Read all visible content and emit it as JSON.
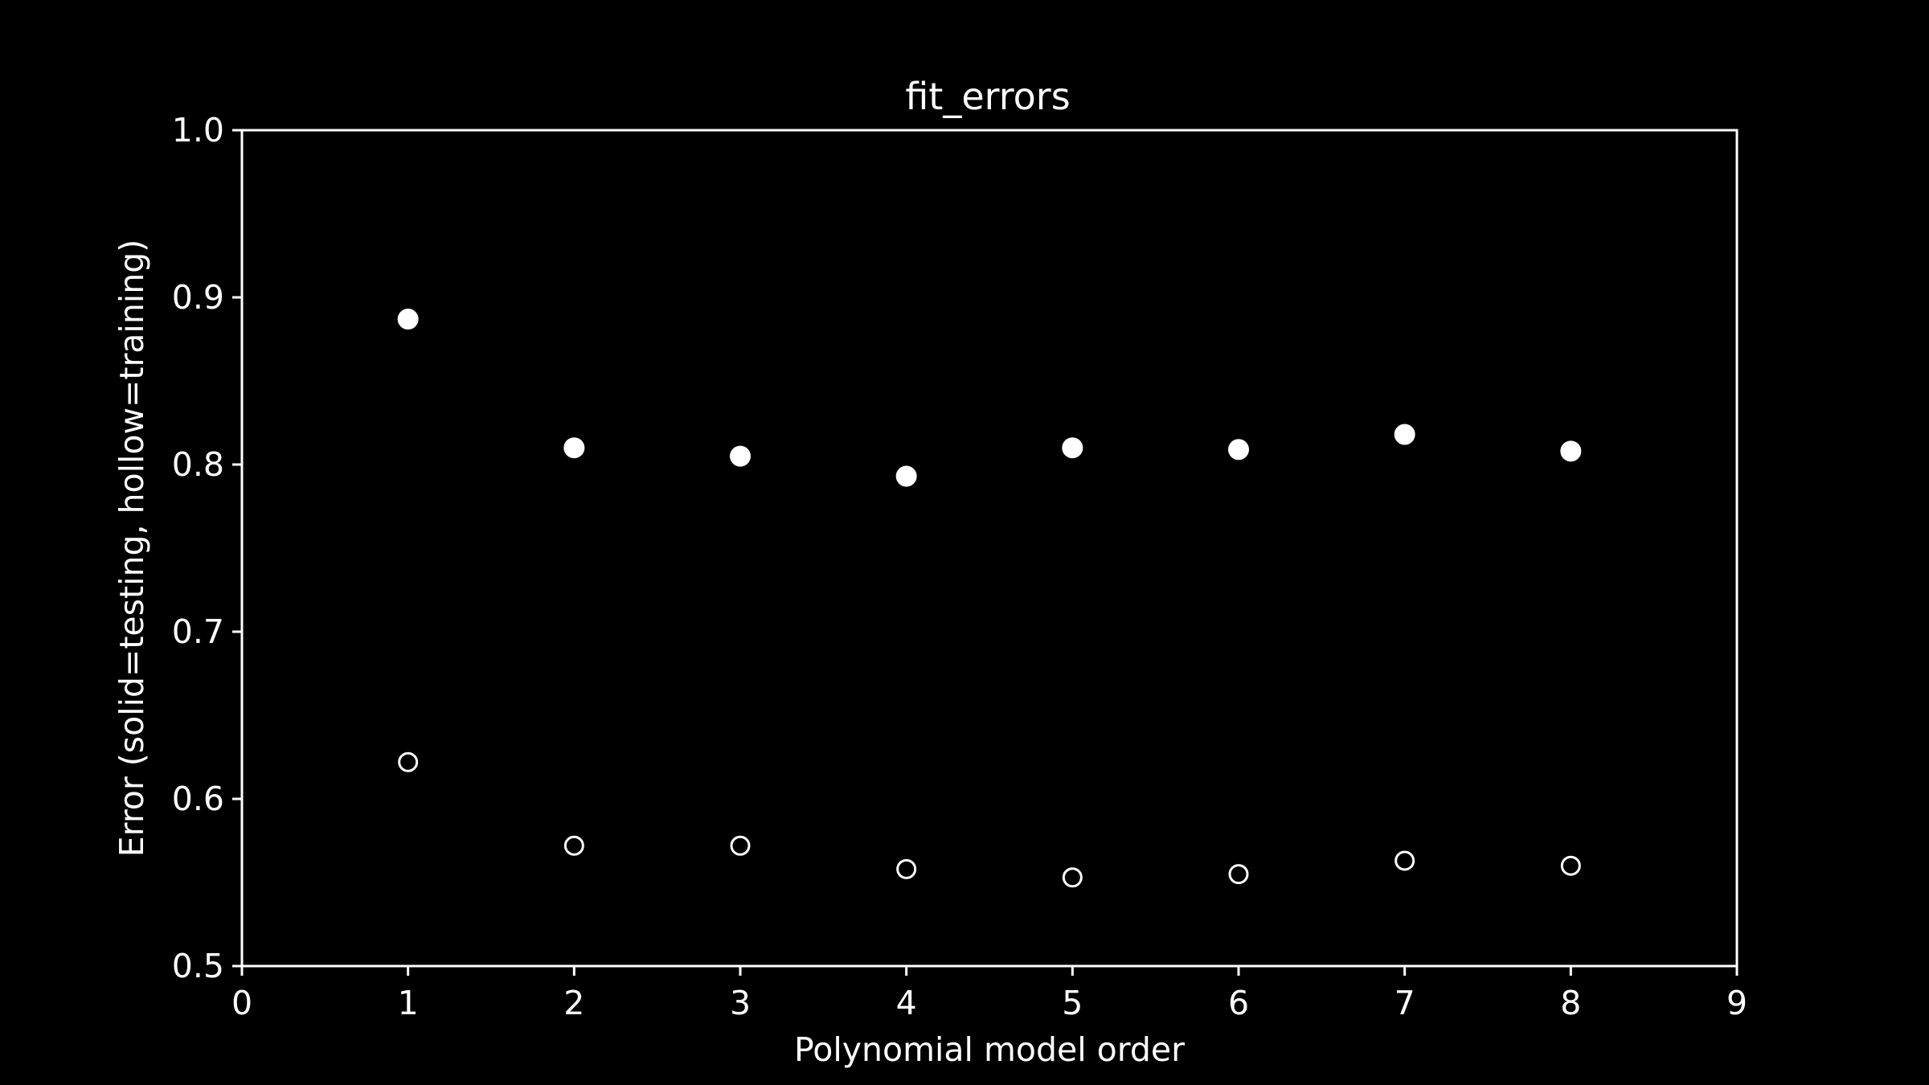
{
  "chart_data": {
    "type": "scatter",
    "title": "fit_errors",
    "xlabel": "Polynomial model order",
    "ylabel": "Error (solid=testing, hollow=training)",
    "xlim": [
      0,
      9
    ],
    "ylim": [
      0.5,
      1.0
    ],
    "xticks": [
      "0",
      "1",
      "2",
      "3",
      "4",
      "5",
      "6",
      "7",
      "8",
      "9"
    ],
    "yticks": [
      "0.5",
      "0.6",
      "0.7",
      "0.8",
      "0.9",
      "1.0"
    ],
    "grid": false,
    "series": [
      {
        "marker": "solid",
        "x": [
          1,
          2,
          3,
          4,
          5,
          6,
          7,
          8
        ],
        "y": [
          0.887,
          0.81,
          0.805,
          0.793,
          0.81,
          0.809,
          0.818,
          0.808
        ]
      },
      {
        "marker": "hollow",
        "x": [
          1,
          2,
          3,
          4,
          5,
          6,
          7,
          8
        ],
        "y": [
          0.622,
          0.572,
          0.572,
          0.558,
          0.553,
          0.555,
          0.563,
          0.56
        ]
      }
    ],
    "colors": {
      "background": "#000000",
      "foreground": "#ffffff"
    }
  }
}
